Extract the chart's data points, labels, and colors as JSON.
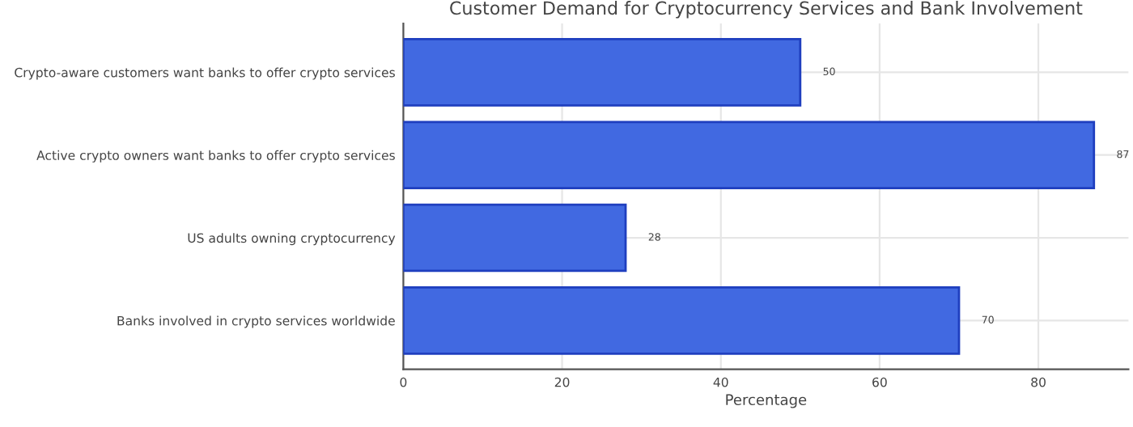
{
  "chart_data": {
    "type": "bar",
    "orientation": "horizontal",
    "title": "Customer Demand for Cryptocurrency Services and Bank Involvement",
    "xlabel": "Percentage",
    "categories": [
      "Crypto-aware customers want banks to offer crypto services",
      "Active crypto owners want banks to offer crypto services",
      "US adults owning cryptocurrency",
      "Banks involved in crypto services worldwide"
    ],
    "values": [
      50,
      87,
      28,
      70
    ],
    "color": "#4169e1",
    "xlim": [
      0,
      91.35
    ],
    "xticks": [
      0,
      20,
      40,
      60,
      80
    ],
    "grid": true,
    "data_labels": true
  }
}
